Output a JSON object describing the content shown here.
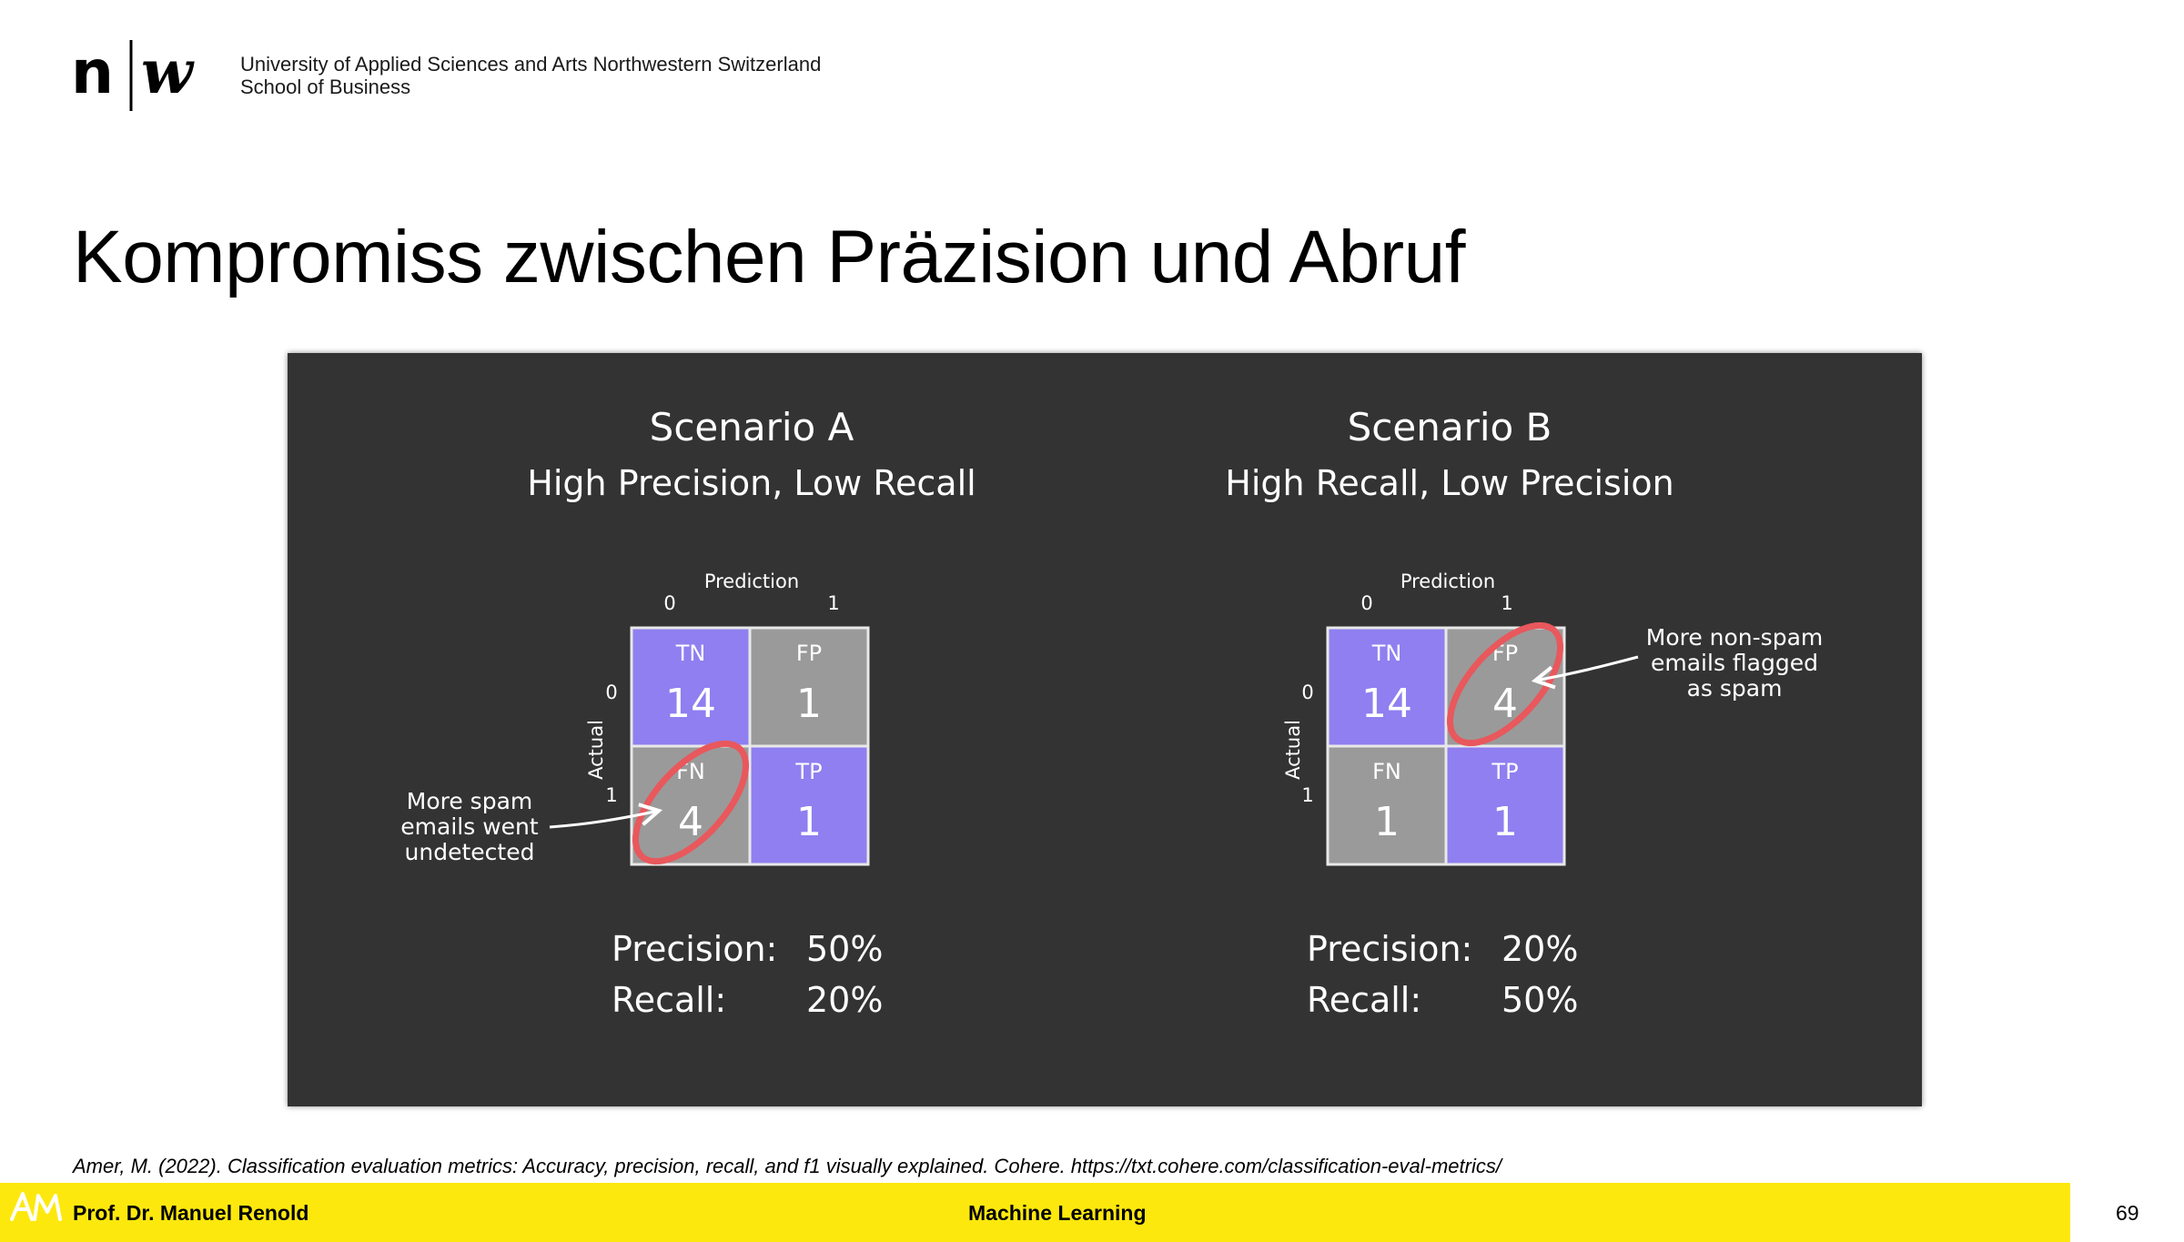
{
  "header": {
    "logo_icon": "nw-logo",
    "institution": "University of Applied Sciences and Arts Northwestern Switzerland",
    "school": "School of Business"
  },
  "slide": {
    "title": "Kompromiss zwischen Präzision und Abruf"
  },
  "figure": {
    "scenario_a": {
      "title": "Scenario A",
      "subtitle": "High Precision, Low Recall",
      "prediction_label": "Prediction",
      "actual_label": "Actual",
      "col_0": "0",
      "col_1": "1",
      "row_0": "0",
      "row_1": "1",
      "tn_label": "TN",
      "tn_value": "14",
      "fp_label": "FP",
      "fp_value": "1",
      "fn_label": "FN",
      "fn_value": "4",
      "tp_label": "TP",
      "tp_value": "1",
      "note_line1": "More spam",
      "note_line2": "emails went",
      "note_line3": "undetected",
      "precision_label": "Precision:",
      "precision_value": "50%",
      "recall_label": "Recall:",
      "recall_value": "20%"
    },
    "scenario_b": {
      "title": "Scenario B",
      "subtitle": "High Recall, Low Precision",
      "prediction_label": "Prediction",
      "actual_label": "Actual",
      "col_0": "0",
      "col_1": "1",
      "row_0": "0",
      "row_1": "1",
      "tn_label": "TN",
      "tn_value": "14",
      "fp_label": "FP",
      "fp_value": "4",
      "fn_label": "FN",
      "fn_value": "1",
      "tp_label": "TP",
      "tp_value": "1",
      "note_line1": "More non-spam",
      "note_line2": "emails flagged",
      "note_line3": "as spam",
      "precision_label": "Precision:",
      "precision_value": "20%",
      "recall_label": "Recall:",
      "recall_value": "50%"
    },
    "colors": {
      "background": "#333333",
      "highlight_cell": "#8f7ff0",
      "neutral_cell": "#9a9a9a",
      "circle": "#e8585c"
    }
  },
  "citation": "Amer, M. (2022). Classification evaluation metrics: Accuracy, precision, recall, and f1 visually explained. Cohere. https://txt.cohere.com/classification-eval-metrics/",
  "footer": {
    "logo_icon": "am-logo",
    "author": "Prof. Dr. Manuel Renold",
    "course": "Machine Learning",
    "page_number": "69"
  }
}
